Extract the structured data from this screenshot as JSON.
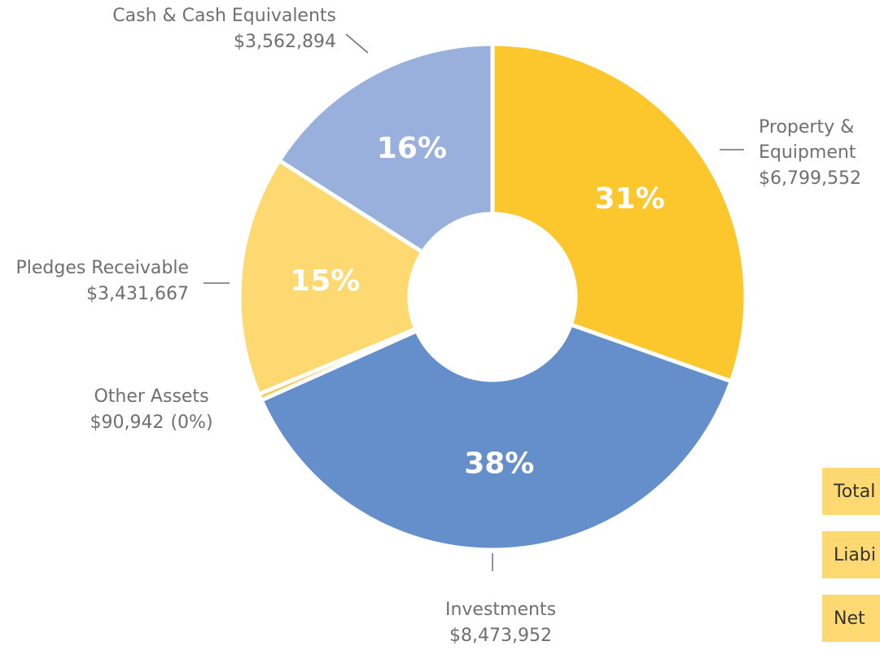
{
  "chart_data": {
    "type": "donut",
    "categories": [
      "Property & Equipment",
      "Investments",
      "Other Assets",
      "Pledges Receivable",
      "Cash & Cash Equivalents"
    ],
    "category_lines": [
      [
        "Property &",
        "Equipment"
      ],
      [
        "Investments"
      ],
      [
        "Other Assets"
      ],
      [
        "Pledges Receivable"
      ],
      [
        "Cash & Cash Equivalents"
      ]
    ],
    "values": [
      6799552,
      8473952,
      90942,
      3431667,
      3562894
    ],
    "value_labels": [
      "$6,799,552",
      "$8,473,952",
      "$90,942",
      "$3,431,667",
      "$3,562,894"
    ],
    "percent_labels": [
      "31%",
      "38%",
      "(0%)",
      "15%",
      "16%"
    ],
    "colors": [
      "#fcc72c",
      "#658fca",
      "#f7c847",
      "#fed870",
      "#98b0db"
    ]
  },
  "summary_boxes": [
    "Total",
    "Liabi",
    "Net"
  ]
}
